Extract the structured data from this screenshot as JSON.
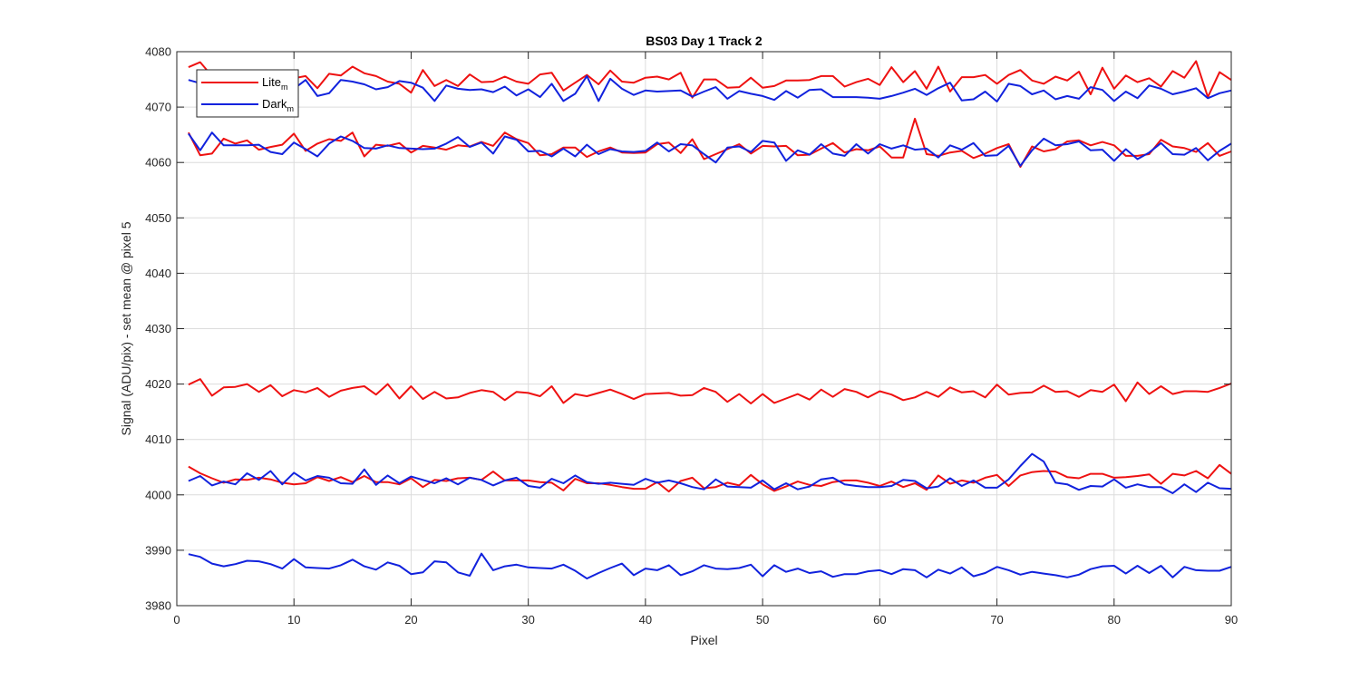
{
  "chart_data": {
    "type": "line",
    "title": "BS03 Day 1 Track 2",
    "xlabel": "Pixel",
    "ylabel": "Signal (ADU/pix) - set mean @ pixel 5",
    "xlim": [
      0,
      90
    ],
    "ylim": [
      3980,
      4080
    ],
    "xticks": [
      "0",
      "10",
      "20",
      "30",
      "40",
      "50",
      "60",
      "70",
      "80",
      "90"
    ],
    "yticks": [
      "3980",
      "3990",
      "4000",
      "4010",
      "4020",
      "4030",
      "4040",
      "4050",
      "4060",
      "4070",
      "4080"
    ],
    "grid": true,
    "legend_position": "top-left",
    "legend": [
      {
        "base": "Lite",
        "sub": "m",
        "color": "#ee1111"
      },
      {
        "base": "Dark",
        "sub": "m",
        "color": "#1122dd"
      }
    ],
    "series": [
      {
        "color": "#ee1111",
        "x_start": 1,
        "x_step": 1,
        "values": [
          4077.2,
          4078.1,
          4075.6,
          4074.3,
          4076.0,
          4075.1,
          4075.5,
          4074.0,
          4073.8,
          4075.2,
          4075.6,
          4073.4,
          4076.0,
          4075.7,
          4077.3,
          4076.1,
          4075.6,
          4074.6,
          4074.2,
          4072.6,
          4076.7,
          4073.8,
          4074.9,
          4073.8,
          4075.9,
          4074.5,
          4074.6,
          4075.5,
          4074.6,
          4074.2,
          4075.9,
          4076.2,
          4073.0,
          4074.4,
          4075.8,
          4074.1,
          4076.6,
          4074.6,
          4074.4,
          4075.3,
          4075.5,
          4075.0,
          4076.2,
          4071.7,
          4075.0,
          4075.0,
          4073.5,
          4073.6,
          4075.3,
          4073.5,
          4073.8,
          4074.8,
          4074.8,
          4074.9,
          4075.6,
          4075.6,
          4073.7,
          4074.5,
          4075.1,
          4074.0,
          4077.2,
          4074.5,
          4076.5,
          4073.3,
          4077.3,
          4072.8,
          4075.4,
          4075.4,
          4075.8,
          4074.2,
          4075.8,
          4076.7,
          4074.8,
          4074.2,
          4075.5,
          4074.8,
          4076.4,
          4072.3,
          4077.1,
          4073.3,
          4075.7,
          4074.5,
          4075.2,
          4073.7,
          4076.5,
          4075.3,
          4078.3,
          4071.8,
          4076.3,
          4074.9
        ]
      },
      {
        "color": "#1122dd",
        "x_start": 1,
        "x_step": 1,
        "values": [
          4074.9,
          4074.3,
          4072.8,
          4073.5,
          4073.0,
          4074.5,
          4073.1,
          4074.0,
          4073.5,
          4073.3,
          4074.9,
          4072.0,
          4072.5,
          4074.9,
          4074.6,
          4074.1,
          4073.2,
          4073.6,
          4074.7,
          4074.4,
          4073.5,
          4071.1,
          4073.9,
          4073.3,
          4073.1,
          4073.2,
          4072.7,
          4073.7,
          4072.1,
          4073.2,
          4071.8,
          4074.2,
          4071.1,
          4072.4,
          4075.6,
          4071.1,
          4075.1,
          4073.3,
          4072.2,
          4073.0,
          4072.8,
          4072.9,
          4073.0,
          4071.9,
          4072.8,
          4073.6,
          4071.5,
          4072.9,
          4072.4,
          4072.0,
          4071.3,
          4072.9,
          4071.7,
          4073.1,
          4073.2,
          4071.8,
          4071.8,
          4071.8,
          4071.7,
          4071.5,
          4072.0,
          4072.6,
          4073.3,
          4072.2,
          4073.4,
          4074.4,
          4071.2,
          4071.4,
          4072.8,
          4071.0,
          4074.2,
          4073.8,
          4072.3,
          4073.0,
          4071.4,
          4072.0,
          4071.5,
          4073.6,
          4073.1,
          4071.1,
          4072.8,
          4071.6,
          4073.9,
          4073.3,
          4072.3,
          4072.8,
          4073.4,
          4071.6,
          4072.5,
          4073.0
        ]
      },
      {
        "color": "#ee1111",
        "x_start": 1,
        "x_step": 1,
        "values": [
          4065.4,
          4061.3,
          4061.6,
          4064.3,
          4063.4,
          4064.0,
          4062.3,
          4062.8,
          4063.2,
          4065.2,
          4062.1,
          4063.4,
          4064.2,
          4063.9,
          4065.4,
          4061.1,
          4063.2,
          4063.0,
          4063.5,
          4061.8,
          4063.0,
          4062.7,
          4062.3,
          4063.1,
          4062.9,
          4063.7,
          4063.0,
          4065.4,
          4064.2,
          4063.5,
          4061.3,
          4061.5,
          4062.7,
          4062.7,
          4061.0,
          4062.0,
          4062.7,
          4061.8,
          4061.7,
          4061.8,
          4063.3,
          4063.6,
          4061.7,
          4064.2,
          4060.6,
          4061.5,
          4062.4,
          4063.3,
          4061.6,
          4063.0,
          4062.9,
          4063.0,
          4061.3,
          4061.4,
          4062.5,
          4063.5,
          4061.8,
          4062.4,
          4062.2,
          4062.9,
          4060.9,
          4060.9,
          4067.9,
          4061.5,
          4061.2,
          4061.8,
          4062.1,
          4060.8,
          4061.6,
          4062.6,
          4063.3,
          4059.2,
          4062.9,
          4062.0,
          4062.4,
          4063.8,
          4064.0,
          4063.1,
          4063.7,
          4063.1,
          4061.2,
          4061.2,
          4061.5,
          4064.1,
          4062.9,
          4062.6,
          4061.9,
          4063.5,
          4061.2,
          4062.0
        ]
      },
      {
        "color": "#1122dd",
        "x_start": 1,
        "x_step": 1,
        "values": [
          4065.2,
          4062.2,
          4065.4,
          4063.1,
          4063.1,
          4063.1,
          4063.2,
          4061.9,
          4061.5,
          4063.6,
          4062.4,
          4061.1,
          4063.4,
          4064.7,
          4063.9,
          4062.6,
          4062.5,
          4063.1,
          4062.6,
          4062.5,
          4062.4,
          4062.5,
          4063.4,
          4064.6,
          4062.8,
          4063.6,
          4061.6,
          4064.7,
          4064.1,
          4062.0,
          4062.1,
          4061.1,
          4062.5,
          4061.1,
          4063.2,
          4061.5,
          4062.4,
          4062.0,
          4061.9,
          4062.1,
          4063.6,
          4062.0,
          4063.3,
          4063.1,
          4061.5,
          4060.0,
          4062.7,
          4062.9,
          4061.9,
          4063.9,
          4063.6,
          4060.3,
          4062.2,
          4061.4,
          4063.3,
          4061.6,
          4061.2,
          4063.3,
          4061.6,
          4063.3,
          4062.5,
          4063.1,
          4062.3,
          4062.5,
          4060.9,
          4063.1,
          4062.3,
          4063.5,
          4061.2,
          4061.3,
          4063.0,
          4059.4,
          4062.2,
          4064.3,
          4063.1,
          4063.3,
          4063.8,
          4062.2,
          4062.3,
          4060.3,
          4062.4,
          4060.6,
          4061.8,
          4063.5,
          4061.5,
          4061.4,
          4062.6,
          4060.4,
          4062.1,
          4063.4
        ]
      },
      {
        "color": "#ee1111",
        "x_start": 1,
        "x_step": 1,
        "values": [
          4019.9,
          4020.9,
          4017.9,
          4019.4,
          4019.5,
          4020.0,
          4018.6,
          4019.8,
          4017.8,
          4018.9,
          4018.5,
          4019.3,
          4017.7,
          4018.8,
          4019.3,
          4019.6,
          4018.1,
          4020.0,
          4017.4,
          4019.6,
          4017.3,
          4018.6,
          4017.4,
          4017.6,
          4018.4,
          4018.9,
          4018.6,
          4017.1,
          4018.6,
          4018.4,
          4017.8,
          4019.6,
          4016.6,
          4018.2,
          4017.8,
          4018.4,
          4019.0,
          4018.2,
          4017.3,
          4018.2,
          4018.3,
          4018.4,
          4017.9,
          4018.0,
          4019.3,
          4018.6,
          4016.8,
          4018.2,
          4016.5,
          4018.2,
          4016.6,
          4017.4,
          4018.2,
          4017.2,
          4019.0,
          4017.7,
          4019.1,
          4018.6,
          4017.6,
          4018.7,
          4018.1,
          4017.1,
          4017.6,
          4018.6,
          4017.7,
          4019.4,
          4018.5,
          4018.7,
          4017.6,
          4019.9,
          4018.1,
          4018.4,
          4018.5,
          4019.7,
          4018.6,
          4018.7,
          4017.7,
          4018.9,
          4018.6,
          4019.9,
          4016.9,
          4020.3,
          4018.2,
          4019.6,
          4018.2,
          4018.7,
          4018.7,
          4018.6,
          4019.3,
          4020.1
        ]
      },
      {
        "color": "#ee1111",
        "x_start": 1,
        "x_step": 1,
        "values": [
          4005.1,
          4003.9,
          4003.0,
          4002.2,
          4002.8,
          4002.7,
          4003.1,
          4002.8,
          4002.2,
          4001.9,
          4002.1,
          4003.2,
          4002.5,
          4003.2,
          4002.3,
          4003.4,
          4002.3,
          4002.3,
          4001.9,
          4003.0,
          4001.4,
          4002.7,
          4002.5,
          4003.0,
          4003.1,
          4002.7,
          4004.2,
          4002.6,
          4002.6,
          4002.6,
          4002.3,
          4002.2,
          4000.8,
          4002.9,
          4002.1,
          4002.1,
          4001.8,
          4001.4,
          4001.1,
          4001.1,
          4002.3,
          4000.6,
          4002.5,
          4003.1,
          4001.2,
          4001.4,
          4002.2,
          4001.7,
          4003.6,
          4001.9,
          4000.7,
          4001.5,
          4002.4,
          4001.8,
          4001.6,
          4002.3,
          4002.6,
          4002.6,
          4002.2,
          4001.6,
          4002.4,
          4001.4,
          4002.1,
          4000.9,
          4003.5,
          4002.0,
          4002.6,
          4002.2,
          4003.1,
          4003.6,
          4001.6,
          4003.5,
          4004.1,
          4004.3,
          4004.2,
          4003.2,
          4003.0,
          4003.8,
          4003.8,
          4003.1,
          4003.2,
          4003.4,
          4003.7,
          4002.0,
          4003.8,
          4003.5,
          4004.3,
          4003.0,
          4005.4,
          4003.8
        ]
      },
      {
        "color": "#1122dd",
        "x_start": 1,
        "x_step": 1,
        "values": [
          4002.5,
          4003.4,
          4001.7,
          4002.4,
          4001.9,
          4003.9,
          4002.7,
          4004.3,
          4001.9,
          4004.0,
          4002.6,
          4003.4,
          4003.1,
          4002.1,
          4002.0,
          4004.6,
          4001.8,
          4003.5,
          4002.1,
          4003.3,
          4002.7,
          4002.1,
          4003.0,
          4001.9,
          4003.1,
          4002.7,
          4001.7,
          4002.6,
          4003.1,
          4001.6,
          4001.3,
          4002.9,
          4002.1,
          4003.5,
          4002.3,
          4002.0,
          4002.2,
          4002.0,
          4001.8,
          4002.9,
          4002.2,
          4002.6,
          4002.1,
          4001.4,
          4001.0,
          4002.8,
          4001.5,
          4001.4,
          4001.3,
          4002.6,
          4001.0,
          4002.1,
          4001.0,
          4001.5,
          4002.8,
          4003.1,
          4001.9,
          4001.6,
          4001.4,
          4001.4,
          4001.6,
          4002.7,
          4002.5,
          4001.2,
          4001.5,
          4003.0,
          4001.6,
          4002.6,
          4001.3,
          4001.3,
          4002.8,
          4005.2,
          4007.4,
          4006.0,
          4002.2,
          4001.9,
          4000.9,
          4001.6,
          4001.5,
          4002.8,
          4001.3,
          4001.9,
          4001.4,
          4001.4,
          4000.3,
          4001.9,
          4000.5,
          4002.2,
          4001.2,
          4001.1
        ]
      },
      {
        "color": "#1122dd",
        "x_start": 1,
        "x_step": 1,
        "values": [
          3989.3,
          3988.8,
          3987.6,
          3987.1,
          3987.5,
          3988.1,
          3988.0,
          3987.5,
          3986.7,
          3988.4,
          3986.9,
          3986.8,
          3986.7,
          3987.3,
          3988.3,
          3987.1,
          3986.5,
          3987.8,
          3987.2,
          3985.7,
          3986.0,
          3988.0,
          3987.8,
          3986.0,
          3985.4,
          3989.4,
          3986.4,
          3987.1,
          3987.4,
          3986.9,
          3986.8,
          3986.7,
          3987.4,
          3986.3,
          3984.9,
          3985.9,
          3986.8,
          3987.6,
          3985.5,
          3986.7,
          3986.4,
          3987.3,
          3985.5,
          3986.2,
          3987.3,
          3986.7,
          3986.6,
          3986.8,
          3987.4,
          3985.3,
          3987.3,
          3986.1,
          3986.7,
          3985.9,
          3986.2,
          3985.2,
          3985.7,
          3985.7,
          3986.2,
          3986.4,
          3985.7,
          3986.6,
          3986.4,
          3985.1,
          3986.5,
          3985.8,
          3986.9,
          3985.3,
          3985.9,
          3987.0,
          3986.4,
          3985.6,
          3986.1,
          3985.8,
          3985.5,
          3985.1,
          3985.6,
          3986.6,
          3987.1,
          3987.2,
          3985.8,
          3987.2,
          3985.9,
          3987.2,
          3985.1,
          3987.0,
          3986.4,
          3986.3,
          3986.3,
          3987.0
        ]
      }
    ]
  }
}
